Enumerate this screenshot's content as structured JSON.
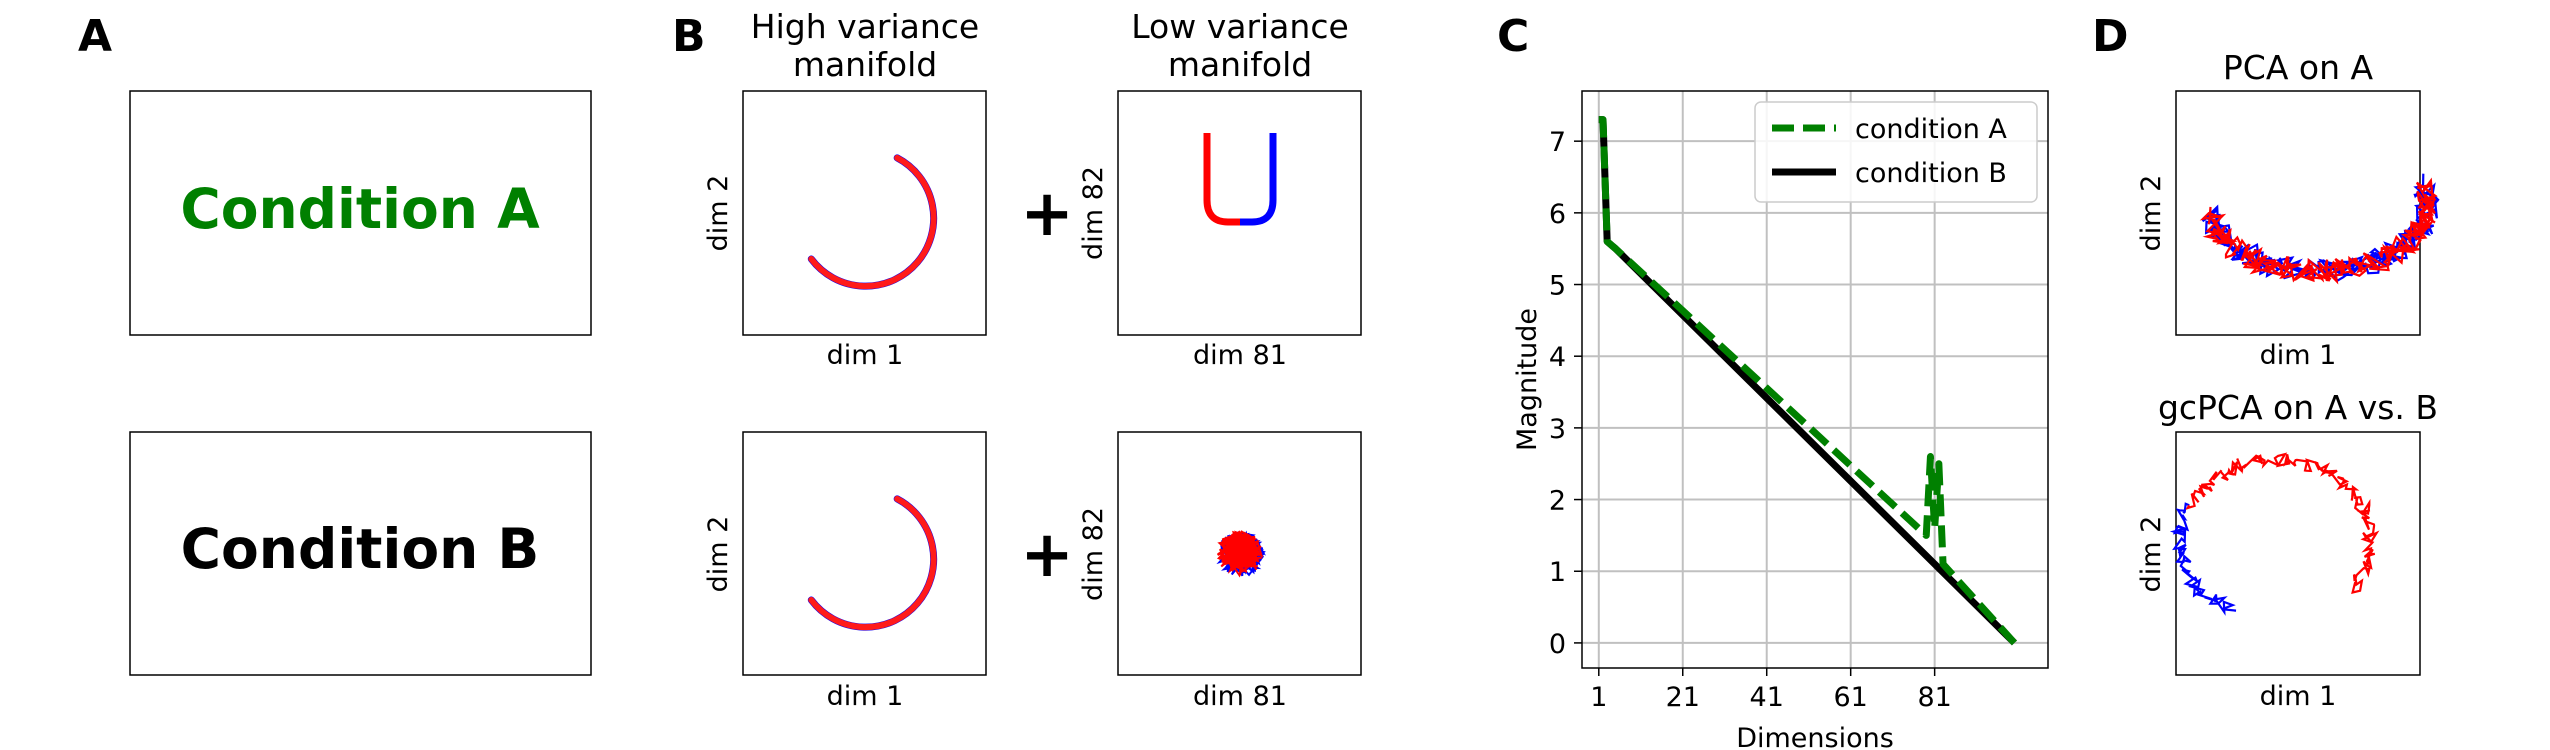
{
  "panels": {
    "a": "A",
    "b": "B",
    "c": "C",
    "d": "D"
  },
  "panel_a": {
    "condition_a": "Condition A",
    "condition_b": "Condition B",
    "condition_a_color": "#008000",
    "condition_b_color": "#000000"
  },
  "panel_b": {
    "col_high_line1": "High variance",
    "col_high_line2": "manifold",
    "col_low_line1": "Low variance",
    "col_low_line2": "manifold",
    "plus": "+",
    "dim1": "dim 1",
    "dim2": "dim 2",
    "dim81": "dim 81",
    "dim82": "dim 82"
  },
  "panel_d": {
    "title_top": "PCA on A",
    "title_bottom": "gcPCA on A vs. B",
    "dim1": "dim 1",
    "dim2": "dim 2"
  },
  "colors": {
    "red": "#ff0000",
    "blue": "#0000ff",
    "green": "#008000",
    "black": "#000000",
    "grid": "#c0c0c0"
  },
  "chart_data": {
    "type": "line",
    "title": "",
    "xlabel": "Dimensions",
    "ylabel": "Magnitude",
    "xlim": [
      -3,
      108
    ],
    "ylim": [
      -0.35,
      7.7
    ],
    "xticks": [
      1,
      21,
      41,
      61,
      81
    ],
    "yticks": [
      0,
      1,
      2,
      3,
      4,
      5,
      6,
      7
    ],
    "grid": true,
    "legend_position": "top-right",
    "series": [
      {
        "name": "condition A",
        "color": "#008000",
        "style": "dashed",
        "x": [
          1,
          2,
          3,
          4,
          5,
          79,
          80,
          81,
          82,
          83,
          100
        ],
        "y": [
          7.3,
          7.3,
          5.6,
          5.55,
          5.5,
          1.5,
          2.6,
          1.6,
          2.5,
          1.1,
          0.0
        ]
      },
      {
        "name": "condition B",
        "color": "#000000",
        "style": "solid",
        "x": [
          1,
          2,
          3,
          4,
          5,
          100
        ],
        "y": [
          7.3,
          7.3,
          5.6,
          5.55,
          5.5,
          0.0
        ]
      }
    ]
  }
}
